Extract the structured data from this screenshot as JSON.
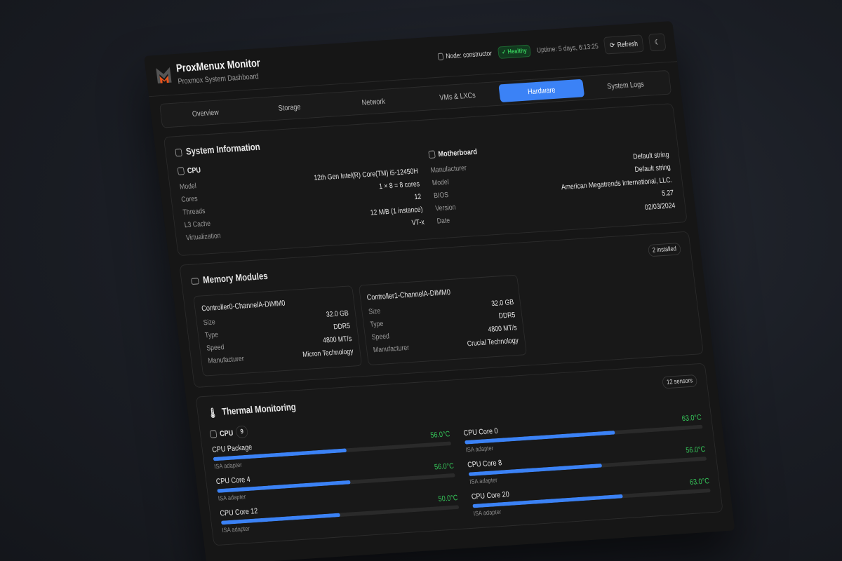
{
  "header": {
    "title": "ProxMenux Monitor",
    "subtitle": "Proxmox System Dashboard",
    "node": "Node: constructor",
    "status": "Healthy",
    "uptime": "Uptime: 5 days, 6:13:25",
    "refresh": "Refresh"
  },
  "colors": {
    "accent": "#3b82f6",
    "healthy": "#35c659",
    "logo_orange": "#e8541c"
  },
  "tabs": [
    {
      "label": "Overview"
    },
    {
      "label": "Storage"
    },
    {
      "label": "Network"
    },
    {
      "label": "VMs & LXCs"
    },
    {
      "label": "Hardware",
      "active": true
    },
    {
      "label": "System Logs"
    }
  ],
  "sysinfo": {
    "title": "System Information",
    "cpu": {
      "title": "CPU",
      "rows": [
        {
          "k": "Model",
          "v": "12th Gen Intel(R) Core(TM) i5-12450H"
        },
        {
          "k": "Cores",
          "v": "1 × 8 = 8 cores"
        },
        {
          "k": "Threads",
          "v": "12"
        },
        {
          "k": "L3 Cache",
          "v": "12 MiB (1 instance)"
        },
        {
          "k": "Virtualization",
          "v": "VT-x"
        }
      ]
    },
    "mb": {
      "title": "Motherboard",
      "rows": [
        {
          "k": "Manufacturer",
          "v": "Default string"
        },
        {
          "k": "Model",
          "v": "Default string"
        },
        {
          "k": "BIOS",
          "v": "American Megatrends International, LLC."
        },
        {
          "k": "Version",
          "v": "5.27"
        },
        {
          "k": "Date",
          "v": "02/03/2024"
        }
      ]
    }
  },
  "memory": {
    "title": "Memory Modules",
    "badge": "2 installed",
    "modules": [
      {
        "name": "Controller0-ChannelA-DIMM0",
        "size": "32.0 GB",
        "type": "DDR5",
        "speed": "4800 MT/s",
        "manufacturer": "Micron Technology"
      },
      {
        "name": "Controller1-ChannelA-DIMM0",
        "size": "32.0 GB",
        "type": "DDR5",
        "speed": "4800 MT/s",
        "manufacturer": "Crucial Technology"
      }
    ],
    "labels": {
      "size": "Size",
      "type": "Type",
      "speed": "Speed",
      "manufacturer": "Manufacturer"
    }
  },
  "thermal": {
    "title": "Thermal Monitoring",
    "badge": "12 sensors",
    "group": "CPU",
    "group_count": "9",
    "sensors": [
      {
        "name": "CPU Package",
        "temp": "56.0°C",
        "level": 56,
        "adapter": "ISA adapter"
      },
      {
        "name": "CPU Core 0",
        "temp": "63.0°C",
        "level": 63,
        "adapter": "ISA adapter"
      },
      {
        "name": "CPU Core 4",
        "temp": "56.0°C",
        "level": 56,
        "adapter": "ISA adapter"
      },
      {
        "name": "CPU Core 8",
        "temp": "56.0°C",
        "level": 56,
        "adapter": "ISA adapter"
      },
      {
        "name": "CPU Core 12",
        "temp": "50.0°C",
        "level": 50,
        "adapter": "ISA adapter"
      },
      {
        "name": "CPU Core 20",
        "temp": "63.0°C",
        "level": 63,
        "adapter": "ISA adapter"
      }
    ]
  }
}
